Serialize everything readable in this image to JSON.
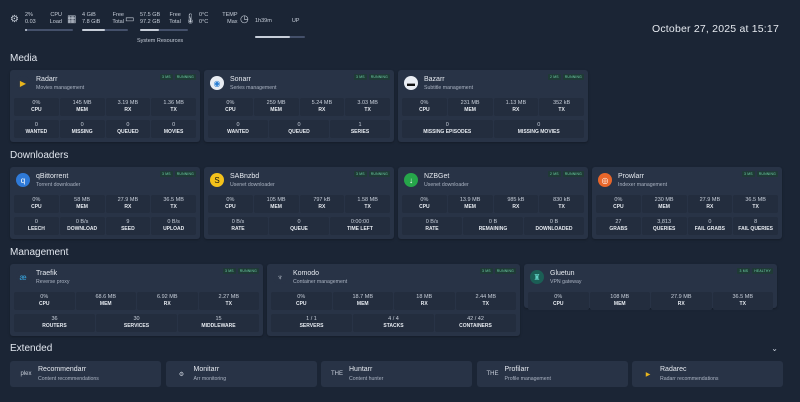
{
  "header": {
    "cpu": {
      "icon": "cpu-icon",
      "v1": "2%",
      "v2": "0.03",
      "l1": "CPU",
      "l2": "Load",
      "fill": 0.05
    },
    "mem": {
      "icon": "memory-icon",
      "v1": "4 GiB",
      "v2": "7.8 GiB",
      "l1": "Free",
      "l2": "Total",
      "fill": 0.5
    },
    "disk": {
      "icon": "disk-icon",
      "v1": "57.5 GB",
      "v2": "97.2 GB",
      "l1": "Free",
      "l2": "Total",
      "fill": 0.4
    },
    "temp": {
      "icon": "thermometer-icon",
      "v1": "0°C",
      "v2": "0°C",
      "l1": "TEMP",
      "l2": "Max"
    },
    "uptime": {
      "icon": "clock-icon",
      "v1": "1h39m",
      "l1": "UP",
      "fill": 0.7
    },
    "system_resources": "System Resources",
    "datetime": "October 27, 2025 at 15:17"
  },
  "sections": {
    "media": "Media",
    "downloaders": "Downloaders",
    "management": "Management",
    "extended": "Extended"
  },
  "media": [
    {
      "title": "Radarr",
      "sub": "Movies management",
      "icon": "radarr-icon",
      "badges": [
        "3 MS",
        "RUNNING"
      ],
      "stats": [
        [
          "0%",
          "CPU"
        ],
        [
          "145 MB",
          "MEM"
        ],
        [
          "3.19 MB",
          "RX"
        ],
        [
          "1.36 MB",
          "TX"
        ]
      ],
      "stats2": [
        [
          "0",
          "WANTED"
        ],
        [
          "0",
          "MISSING"
        ],
        [
          "0",
          "QUEUED"
        ],
        [
          "0",
          "MOVIES"
        ]
      ]
    },
    {
      "title": "Sonarr",
      "sub": "Series management",
      "icon": "sonarr-icon",
      "badges": [
        "3 MS",
        "RUNNING"
      ],
      "stats": [
        [
          "0%",
          "CPU"
        ],
        [
          "259 MB",
          "MEM"
        ],
        [
          "5.24 MB",
          "RX"
        ],
        [
          "3.03 MB",
          "TX"
        ]
      ],
      "stats2": [
        [
          "0",
          "WANTED"
        ],
        [
          "0",
          "QUEUED"
        ],
        [
          "1",
          "SERIES"
        ]
      ]
    },
    {
      "title": "Bazarr",
      "sub": "Subtitle management",
      "icon": "bazarr-icon",
      "badges": [
        "2 MS",
        "RUNNING"
      ],
      "stats": [
        [
          "0%",
          "CPU"
        ],
        [
          "231 MB",
          "MEM"
        ],
        [
          "1.13 MB",
          "RX"
        ],
        [
          "352 kB",
          "TX"
        ]
      ],
      "stats2": [
        [
          "0",
          "MISSING EPISODES"
        ],
        [
          "0",
          "MISSING MOVIES"
        ]
      ]
    }
  ],
  "downloaders": [
    {
      "title": "qBittorrent",
      "sub": "Torrent downloader",
      "icon": "qbittorrent-icon",
      "badges": [
        "3 MS",
        "RUNNING"
      ],
      "stats": [
        [
          "0%",
          "CPU"
        ],
        [
          "58 MB",
          "MEM"
        ],
        [
          "27.9 MB",
          "RX"
        ],
        [
          "36.5 MB",
          "TX"
        ]
      ],
      "stats2": [
        [
          "0",
          "LEECH"
        ],
        [
          "0 B/s",
          "DOWNLOAD"
        ],
        [
          "9",
          "SEED"
        ],
        [
          "0 B/s",
          "UPLOAD"
        ]
      ]
    },
    {
      "title": "SABnzbd",
      "sub": "Usenet downloader",
      "icon": "sabnzbd-icon",
      "badges": [
        "3 MS",
        "RUNNING"
      ],
      "stats": [
        [
          "0%",
          "CPU"
        ],
        [
          "105 MB",
          "MEM"
        ],
        [
          "797 kB",
          "RX"
        ],
        [
          "1.58 MB",
          "TX"
        ]
      ],
      "stats2": [
        [
          "0 B/s",
          "RATE"
        ],
        [
          "0",
          "QUEUE"
        ],
        [
          "0:00:00",
          "TIME LEFT"
        ]
      ]
    },
    {
      "title": "NZBGet",
      "sub": "Usenet downloader",
      "icon": "nzbget-icon",
      "badges": [
        "2 MS",
        "RUNNING"
      ],
      "stats": [
        [
          "0%",
          "CPU"
        ],
        [
          "13.9 MB",
          "MEM"
        ],
        [
          "985 kB",
          "RX"
        ],
        [
          "830 kB",
          "TX"
        ]
      ],
      "stats2": [
        [
          "0 B/s",
          "RATE"
        ],
        [
          "0 B",
          "REMAINING"
        ],
        [
          "0 B",
          "DOWNLOADED"
        ]
      ]
    },
    {
      "title": "Prowlarr",
      "sub": "Indexer management",
      "icon": "prowlarr-icon",
      "badges": [
        "3 MS",
        "RUNNING"
      ],
      "stats": [
        [
          "0%",
          "CPU"
        ],
        [
          "230 MB",
          "MEM"
        ],
        [
          "27.9 MB",
          "RX"
        ],
        [
          "36.5 MB",
          "TX"
        ]
      ],
      "stats2": [
        [
          "27",
          "GRABS"
        ],
        [
          "3,813",
          "QUERIES"
        ],
        [
          "0",
          "FAIL GRABS"
        ],
        [
          "8",
          "FAIL QUERIES"
        ]
      ]
    }
  ],
  "management": [
    {
      "title": "Traefik",
      "sub": "Reverse proxy",
      "icon": "traefik-icon",
      "badges": [
        "3 MS",
        "RUNNING"
      ],
      "stats": [
        [
          "0%",
          "CPU"
        ],
        [
          "68.6 MB",
          "MEM"
        ],
        [
          "6.92 MB",
          "RX"
        ],
        [
          "2.27 MB",
          "TX"
        ]
      ],
      "stats2": [
        [
          "36",
          "ROUTERS"
        ],
        [
          "30",
          "SERVICES"
        ],
        [
          "15",
          "MIDDLEWARE"
        ]
      ]
    },
    {
      "title": "Komodo",
      "sub": "Container management",
      "icon": "komodo-icon",
      "badges": [
        "3 MS",
        "RUNNING"
      ],
      "stats": [
        [
          "0%",
          "CPU"
        ],
        [
          "18.7 MB",
          "MEM"
        ],
        [
          "18 MB",
          "RX"
        ],
        [
          "2.44 MB",
          "TX"
        ]
      ],
      "stats2": [
        [
          "1 / 1",
          "SERVERS"
        ],
        [
          "4 / 4",
          "STACKS"
        ],
        [
          "42 / 42",
          "CONTAINERS"
        ]
      ]
    },
    {
      "title": "Gluetun",
      "sub": "VPN gateway",
      "icon": "gluetun-icon",
      "badges": [
        "3 MS",
        "HEALTHY"
      ],
      "stats": [
        [
          "0%",
          "CPU"
        ],
        [
          "108 MB",
          "MEM"
        ],
        [
          "27.9 MB",
          "RX"
        ],
        [
          "36.5 MB",
          "TX"
        ]
      ],
      "stats2": []
    }
  ],
  "extended": [
    {
      "title": "Recommendarr",
      "sub": "Content recommendations",
      "icon": "recommendarr-icon",
      "glyph": "plex"
    },
    {
      "title": "Monitarr",
      "sub": "Arr monitoring",
      "icon": "monitarr-icon",
      "glyph": "⚙"
    },
    {
      "title": "Huntarr",
      "sub": "Content hunter",
      "icon": "huntarr-icon",
      "glyph": "THE"
    },
    {
      "title": "Profilarr",
      "sub": "Profile management",
      "icon": "profilarr-icon",
      "glyph": "THE"
    },
    {
      "title": "Radarec",
      "sub": "Radarr recommendations",
      "icon": "radarec-icon",
      "glyph": "▶"
    }
  ],
  "colors": {
    "background": "#1b2535",
    "card": "#283346",
    "badge_text": "#6fd5a8"
  }
}
